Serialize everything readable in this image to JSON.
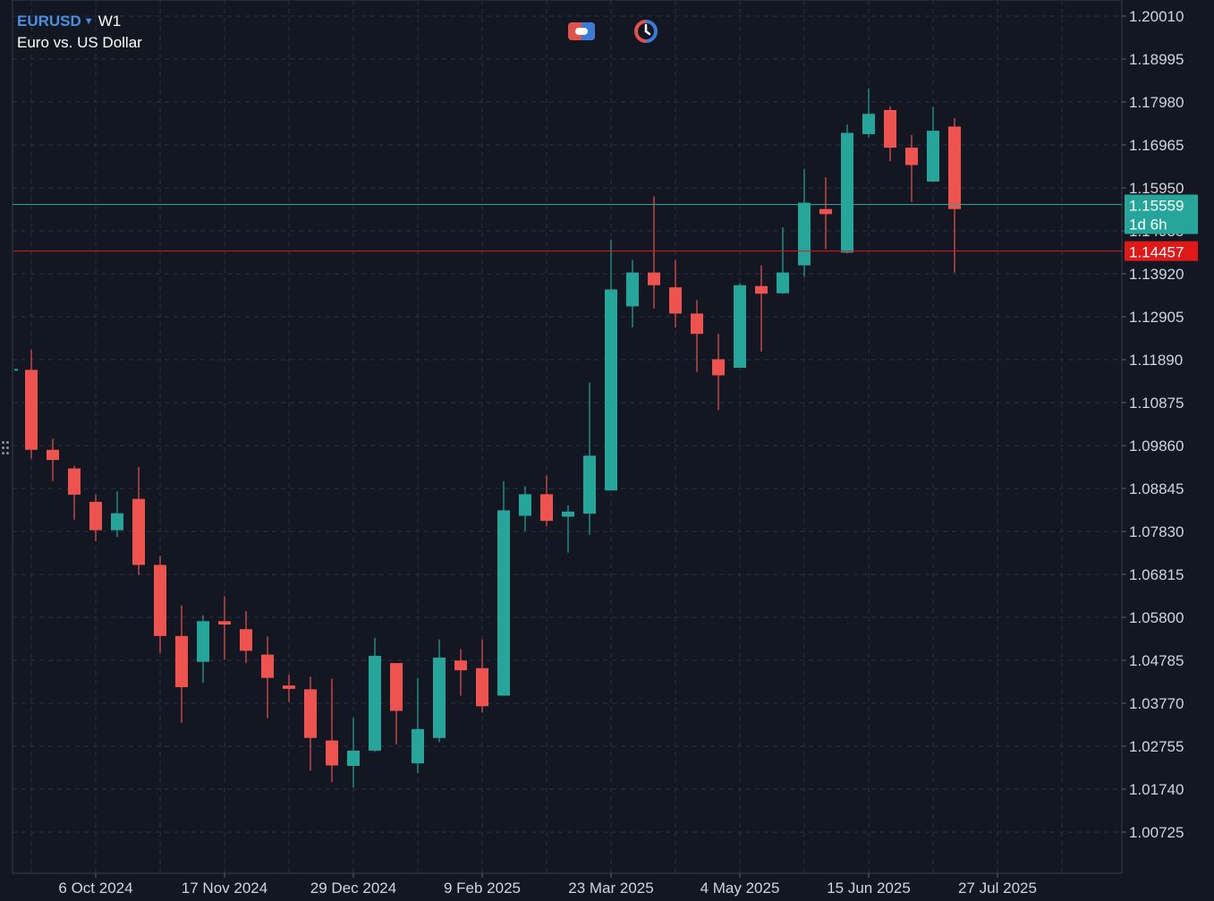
{
  "header": {
    "symbol": "EURUSD",
    "timeframe": "W1",
    "description": "Euro vs. US Dollar",
    "toolbar_icons": [
      "trade-toggle-icon",
      "timer-icon"
    ]
  },
  "colors": {
    "background": "#131722",
    "grid": "#2a3040",
    "bull": "#26a69a",
    "bear": "#ef5350",
    "axis_text": "#d1d4dc",
    "bid_line": "#26a69a",
    "ask_line": "#e01818"
  },
  "axis": {
    "price_ticks": [
      "1.20010",
      "1.18995",
      "1.17980",
      "1.16965",
      "1.15950",
      "1.14935",
      "1.13920",
      "1.12905",
      "1.11890",
      "1.10875",
      "1.09860",
      "1.08845",
      "1.07830",
      "1.06815",
      "1.05800",
      "1.04785",
      "1.03770",
      "1.02755",
      "1.01740",
      "1.00725"
    ],
    "date_ticks": [
      "6 Oct 2024",
      "17 Nov 2024",
      "29 Dec 2024",
      "9 Feb 2025",
      "23 Mar 2025",
      "4 May 2025",
      "15 Jun 2025",
      "27 Jul 2025"
    ]
  },
  "price_labels": {
    "bid_price": "1.15559",
    "countdown": "1d 6h",
    "ask_price": "1.14457"
  },
  "chart_data": {
    "type": "candlestick",
    "symbol": "EURUSD",
    "timeframe": "W1",
    "ylim": [
      1.002,
      1.202
    ],
    "bid": 1.15559,
    "ask": 1.14457,
    "candles": [
      {
        "open": 1.1165,
        "high": 1.1213,
        "low": 1.0955,
        "close": 1.0976
      },
      {
        "open": 1.0976,
        "high": 1.1002,
        "low": 1.0902,
        "close": 1.0952
      },
      {
        "open": 1.0932,
        "high": 1.0938,
        "low": 1.0811,
        "close": 1.087
      },
      {
        "open": 1.0853,
        "high": 1.087,
        "low": 1.076,
        "close": 1.0786
      },
      {
        "open": 1.0786,
        "high": 1.0878,
        "low": 1.077,
        "close": 1.0826
      },
      {
        "open": 1.086,
        "high": 1.0935,
        "low": 1.068,
        "close": 1.0704
      },
      {
        "open": 1.0704,
        "high": 1.0725,
        "low": 1.0496,
        "close": 1.0536
      },
      {
        "open": 1.0536,
        "high": 1.0608,
        "low": 1.0331,
        "close": 1.0415
      },
      {
        "open": 1.0475,
        "high": 1.0585,
        "low": 1.0425,
        "close": 1.0571
      },
      {
        "open": 1.0571,
        "high": 1.063,
        "low": 1.048,
        "close": 1.0563
      },
      {
        "open": 1.0552,
        "high": 1.0595,
        "low": 1.0472,
        "close": 1.0501
      },
      {
        "open": 1.0492,
        "high": 1.0535,
        "low": 1.0342,
        "close": 1.0437
      },
      {
        "open": 1.0419,
        "high": 1.0445,
        "low": 1.038,
        "close": 1.0411
      },
      {
        "open": 1.041,
        "high": 1.044,
        "low": 1.0218,
        "close": 1.0295
      },
      {
        "open": 1.0289,
        "high": 1.0435,
        "low": 1.0191,
        "close": 1.023
      },
      {
        "open": 1.0229,
        "high": 1.0343,
        "low": 1.0178,
        "close": 1.0265
      },
      {
        "open": 1.0265,
        "high": 1.0532,
        "low": 1.0262,
        "close": 1.0489
      },
      {
        "open": 1.0472,
        "high": 1.047,
        "low": 1.028,
        "close": 1.0359
      },
      {
        "open": 1.0235,
        "high": 1.0437,
        "low": 1.0212,
        "close": 1.0316
      },
      {
        "open": 1.0295,
        "high": 1.0528,
        "low": 1.0285,
        "close": 1.0485
      },
      {
        "open": 1.0478,
        "high": 1.0505,
        "low": 1.0395,
        "close": 1.0455
      },
      {
        "open": 1.046,
        "high": 1.0528,
        "low": 1.0355,
        "close": 1.037
      },
      {
        "open": 1.0395,
        "high": 1.0902,
        "low": 1.0395,
        "close": 1.0833
      },
      {
        "open": 1.082,
        "high": 1.089,
        "low": 1.0784,
        "close": 1.0871
      },
      {
        "open": 1.0871,
        "high": 1.0915,
        "low": 1.0795,
        "close": 1.0808
      },
      {
        "open": 1.0818,
        "high": 1.0845,
        "low": 1.0733,
        "close": 1.083
      },
      {
        "open": 1.0825,
        "high": 1.1135,
        "low": 1.0775,
        "close": 1.0962
      },
      {
        "open": 1.088,
        "high": 1.1473,
        "low": 1.088,
        "close": 1.1355
      },
      {
        "open": 1.1315,
        "high": 1.1425,
        "low": 1.1265,
        "close": 1.1395
      },
      {
        "open": 1.1395,
        "high": 1.1575,
        "low": 1.131,
        "close": 1.1365
      },
      {
        "open": 1.136,
        "high": 1.1425,
        "low": 1.1265,
        "close": 1.1298
      },
      {
        "open": 1.1298,
        "high": 1.133,
        "low": 1.116,
        "close": 1.125
      },
      {
        "open": 1.119,
        "high": 1.125,
        "low": 1.107,
        "close": 1.1152
      },
      {
        "open": 1.117,
        "high": 1.137,
        "low": 1.117,
        "close": 1.1365
      },
      {
        "open": 1.1363,
        "high": 1.1412,
        "low": 1.1208,
        "close": 1.1345
      },
      {
        "open": 1.1346,
        "high": 1.1502,
        "low": 1.1345,
        "close": 1.1395
      },
      {
        "open": 1.1412,
        "high": 1.164,
        "low": 1.1385,
        "close": 1.156
      },
      {
        "open": 1.1545,
        "high": 1.162,
        "low": 1.145,
        "close": 1.1533
      },
      {
        "open": 1.1442,
        "high": 1.1745,
        "low": 1.144,
        "close": 1.1725
      },
      {
        "open": 1.1722,
        "high": 1.183,
        "low": 1.1715,
        "close": 1.177
      },
      {
        "open": 1.1779,
        "high": 1.1788,
        "low": 1.1658,
        "close": 1.169
      },
      {
        "open": 1.169,
        "high": 1.172,
        "low": 1.1562,
        "close": 1.1649
      },
      {
        "open": 1.161,
        "high": 1.1787,
        "low": 1.161,
        "close": 1.173
      },
      {
        "open": 1.174,
        "high": 1.176,
        "low": 1.1395,
        "close": 1.1545
      }
    ]
  }
}
